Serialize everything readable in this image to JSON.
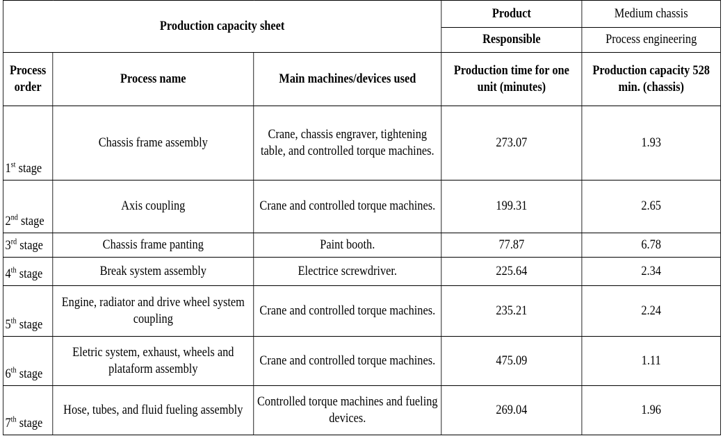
{
  "header": {
    "sheet_title": "Production capacity sheet",
    "product_label": "Product",
    "product_value": "Medium chassis",
    "responsible_label": "Responsible",
    "responsible_value": "Process engineering"
  },
  "columns": {
    "order": "Process order",
    "name": "Process name",
    "machines": "Main machines/devices used",
    "time": "Production time for one unit (minutes)",
    "capacity": "Production capacity 528 min. (chassis)"
  },
  "rows": [
    {
      "num": "1",
      "sup": "st",
      "stage": " stage",
      "name": "Chassis frame assembly",
      "machines": "Crane, chassis engraver, tightening table, and controlled torque machines.",
      "time": "273.07",
      "capacity": "1.93"
    },
    {
      "num": "2",
      "sup": "nd",
      "stage": " stage",
      "name": "Axis coupling",
      "machines": "Crane and controlled torque machines.",
      "time": "199.31",
      "capacity": "2.65"
    },
    {
      "num": "3",
      "sup": "rd",
      "stage": " stage",
      "name": "Chassis frame panting",
      "machines": "Paint booth.",
      "time": "77.87",
      "capacity": "6.78"
    },
    {
      "num": "4",
      "sup": "th",
      "stage": " stage",
      "name": "Break system assembly",
      "machines": "Electrice screwdriver.",
      "time": "225.64",
      "capacity": "2.34"
    },
    {
      "num": "5",
      "sup": "th",
      "stage": " stage",
      "name": "Engine, radiator and drive wheel system coupling",
      "machines": "Crane and controlled torque machines.",
      "time": "235.21",
      "capacity": "2.24"
    },
    {
      "num": "6",
      "sup": "th",
      "stage": " stage",
      "name": "Eletric system, exhaust, wheels and plataform assembly",
      "machines": "Crane and controlled torque machines.",
      "time": "475.09",
      "capacity": "1.11"
    },
    {
      "num": "7",
      "sup": "th",
      "stage": " stage",
      "name": "Hose, tubes, and fluid fueling assembly",
      "machines": "Controlled torque machines and fueling devices.",
      "time": "269.04",
      "capacity": "1.96"
    }
  ]
}
